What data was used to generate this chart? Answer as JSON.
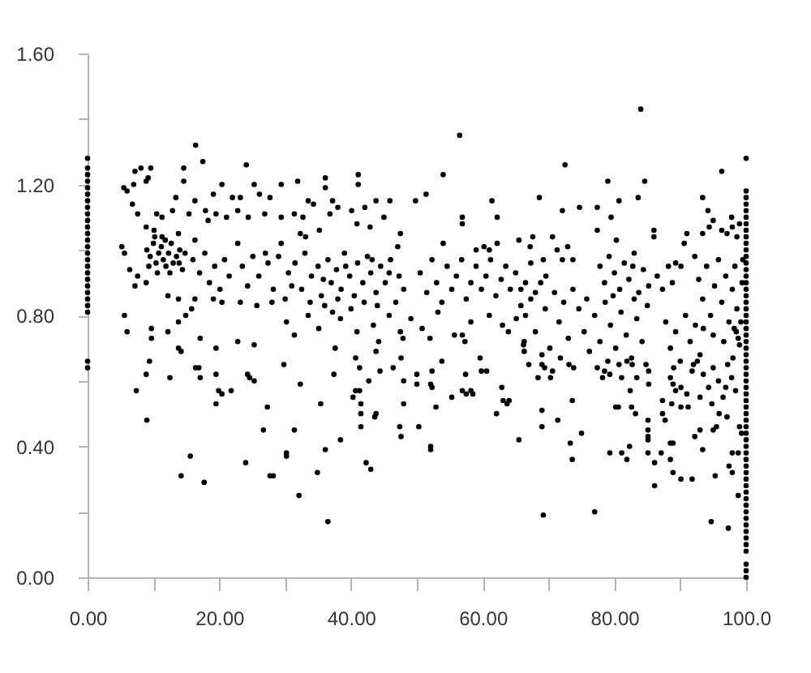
{
  "chart_data": {
    "type": "scatter",
    "color": "#000000",
    "marker": "circle",
    "xlim": [
      0,
      100
    ],
    "ylim": [
      0,
      1.6
    ],
    "xticks": [
      {
        "value": 0,
        "label": "0.00"
      },
      {
        "value": 10,
        "label": null
      },
      {
        "value": 20,
        "label": "20.00"
      },
      {
        "value": 30,
        "label": null
      },
      {
        "value": 40,
        "label": "40.00"
      },
      {
        "value": 50,
        "label": null
      },
      {
        "value": 60,
        "label": "60.00"
      },
      {
        "value": 70,
        "label": null
      },
      {
        "value": 80,
        "label": "80.00"
      },
      {
        "value": 90,
        "label": null
      },
      {
        "value": 100,
        "label": "100.0"
      }
    ],
    "yticks": [
      {
        "value": 0,
        "label": "0.00"
      },
      {
        "value": 0.2,
        "label": null
      },
      {
        "value": 0.4,
        "label": "0.40"
      },
      {
        "value": 0.6,
        "label": null
      },
      {
        "value": 0.8,
        "label": "0.80"
      },
      {
        "value": 1,
        "label": null
      },
      {
        "value": 1.2,
        "label": "1.20"
      },
      {
        "value": 1.4,
        "label": null
      },
      {
        "value": 1.6,
        "label": "1.60"
      }
    ],
    "x": [
      0,
      0,
      0,
      0,
      0,
      0,
      0,
      0,
      0,
      0,
      0,
      0,
      0,
      0,
      0,
      0,
      0,
      0,
      0,
      0,
      0,
      0,
      0,
      0,
      0,
      0,
      100,
      100,
      100,
      100,
      100,
      100,
      100,
      100,
      100,
      100,
      100,
      100,
      100,
      100,
      100,
      100,
      100,
      100,
      100,
      100,
      100,
      100,
      100,
      100,
      100,
      100,
      100,
      100,
      100,
      100,
      100,
      100,
      100,
      100,
      100,
      100,
      100,
      100,
      100,
      100,
      100,
      100,
      100,
      100,
      100,
      100,
      100,
      100,
      100,
      100,
      100,
      100,
      100,
      100,
      100,
      100,
      100,
      100,
      100,
      100,
      16.4,
      17.5,
      24.1,
      7.2,
      8.1,
      9.6,
      9.2,
      14.6,
      14.6,
      5.5,
      6.0,
      7.0,
      8.9,
      20.4,
      25.3,
      29.4,
      13.4,
      16.3,
      19.1,
      22.0,
      23.2,
      26.1,
      27.7,
      6.8,
      7.6,
      10.5,
      11.3,
      12.9,
      15.4,
      17.9,
      18.3,
      19.5,
      21.1,
      22.8,
      24.4,
      26.9,
      29.4,
      8.9,
      10.1,
      11.3,
      13.8,
      16.3,
      9.0,
      9.5,
      10.0,
      10.4,
      10.8,
      11.2,
      11.5,
      11.9,
      12.3,
      12.7,
      13.0,
      13.5,
      14.0,
      14.4,
      9.3,
      10.6,
      11.8,
      12.5,
      13.9,
      14.8,
      10.2,
      5.2,
      5.6,
      6.4,
      7.6,
      8.9,
      7.2,
      16.0,
      17.0,
      17.8,
      18.5,
      19.3,
      20.1,
      20.8,
      21.5,
      22.8,
      23.5,
      24.3,
      25.1,
      26.0,
      27.0,
      27.4,
      28.2,
      29.4,
      12.2,
      13.8,
      16.3,
      19.1,
      20.4,
      23.2,
      25.7,
      28.0,
      5.6,
      6.0,
      9.7,
      9.7,
      13.8,
      14.9,
      15.8,
      12.2,
      17.1,
      19.5,
      22.8,
      25.3,
      13.8,
      14.2,
      9.4,
      7.4,
      8.9,
      9.0,
      12.5,
      16.4,
      16.9,
      17.1,
      19.5,
      19.5,
      19.9,
      20.4,
      21.8,
      24.3,
      24.6,
      25.3,
      29.8,
      27.3,
      26.7,
      15.6,
      14.2,
      17.7,
      24.0,
      27.7,
      28.2,
      56.5,
      41.1,
      41.1,
      36.1,
      36.1,
      31.9,
      54.0,
      49.8,
      51.4,
      61.4,
      62.2,
      56.9,
      56.9,
      33.5,
      34.3,
      37.2,
      43.8,
      45.9,
      45.0,
      31.4,
      32.7,
      36.8,
      38.0,
      40.1,
      42.1,
      40.9,
      42.9,
      32.3,
      35.2,
      33.1,
      47.5,
      47.1,
      54.0,
      67.2,
      65.5,
      59.0,
      60.2,
      61.0,
      62.2,
      29.0,
      30.5,
      31.5,
      32.5,
      33.0,
      34.0,
      35.0,
      35.5,
      36.5,
      37.0,
      37.8,
      38.5,
      39.0,
      39.8,
      40.5,
      41.0,
      41.8,
      42.5,
      43.0,
      43.8,
      44.5,
      45.2,
      46.0,
      46.8,
      47.3,
      48.0,
      30.0,
      33.8,
      36.0,
      38.0,
      40.0,
      42.0,
      44.0,
      31.0,
      35.8,
      39.2,
      43.2,
      45.8,
      50.5,
      51.5,
      52.3,
      53.0,
      53.8,
      54.6,
      55.3,
      56.0,
      56.8,
      57.5,
      58.2,
      59.0,
      59.8,
      60.5,
      61.2,
      62.0,
      62.8,
      63.5,
      64.2,
      65.0,
      65.8,
      66.5,
      67.3,
      68.0,
      30.2,
      31.4,
      33.5,
      35.1,
      37.2,
      38.4,
      40.9,
      43.4,
      45.8,
      47.9,
      49.1,
      50.8,
      53.2,
      55.7,
      58.2,
      61.0,
      63.0,
      65.1,
      66.3,
      37.6,
      43.8,
      44.2,
      47.5,
      52.0,
      56.9,
      57.3,
      63.9,
      66.3,
      32.3,
      37.4,
      35.4,
      31.4,
      30.2,
      30.2,
      36.1,
      34.9,
      38.4,
      32.1,
      36.5,
      40.7,
      41.3,
      41.3,
      40.7,
      40.3,
      42.7,
      41.5,
      41.5,
      41.5,
      43.8,
      43.6,
      42.3,
      43.0,
      44.4,
      46.4,
      47.6,
      48.0,
      50.0,
      50.0,
      52.1,
      52.3,
      52.3,
      48.0,
      47.4,
      50.3,
      47.6,
      52.1,
      52.1,
      52.9,
      53.8,
      55.3,
      57.4,
      56.9,
      57.5,
      58.2,
      58.5,
      59.6,
      59.8,
      60.6,
      62.9,
      63.1,
      63.7,
      64.0,
      62.1,
      65.5,
      67.0,
      69.0,
      69.4,
      68.4,
      70.3,
      70.6,
      73.1,
      73.8,
      69.0,
      69.0,
      71.4,
      73.6,
      73.3,
      73.6,
      75.0,
      69.2,
      77.0,
      77.4,
      78.5,
      79.3,
      78.2,
      80.7,
      81.9,
      82.7,
      81.1,
      83.4,
      85.2,
      85.2,
      84.8,
      82.4,
      80.2,
      80.6,
      82.6,
      83.2,
      79.3,
      81.1,
      81.9,
      82.3,
      85.1,
      85.1,
      85.1,
      85.1,
      85.1,
      86.1,
      86.1,
      87.1,
      87.3,
      87.3,
      87.7,
      88.5,
      88.9,
      89.3,
      90.1,
      91.0,
      88.7,
      90.1,
      91.2,
      88.5,
      88.9,
      88.5,
      88.9,
      90.1,
      91.8,
      92.2,
      93.0,
      93.4,
      94.7,
      95.0,
      95.5,
      95.3,
      95.9,
      97.1,
      97.4,
      97.9,
      97.9,
      98.8,
      98.8,
      97.3,
      99.0,
      99.3,
      92.6,
      93.5,
      94.3,
      95.0,
      95.8,
      96.5,
      97.2,
      97.8,
      98.4,
      93.0,
      94.8,
      96.9,
      98.0,
      91.8,
      72.5,
      96.3,
      79.0,
      84.6,
      68.6,
      80.7,
      83.6,
      93.4,
      72.1,
      74.7,
      77.4,
      79.5,
      94.2,
      95.0,
      97.8,
      99.0,
      77.4,
      86.0,
      86.0,
      91.0,
      90.6,
      93.4,
      94.4,
      96.3,
      97.1,
      97.9,
      98.6,
      67.6,
      70.6,
      80.3,
      71.3,
      72.9,
      72.1,
      69.2,
      73.7,
      69.6,
      77.8,
      78.5,
      79.2,
      80.0,
      80.8,
      81.5,
      82.2,
      83.0,
      83.7,
      84.4,
      85.2,
      79.8,
      82.8,
      86.5,
      87.3,
      88.2,
      89.3,
      90.1,
      88.8,
      92.2,
      92.8,
      93.4,
      94.0,
      94.6,
      95.2,
      95.8,
      96.3,
      96.9,
      97.4,
      97.9,
      98.3,
      98.6,
      98.8,
      98.5,
      99.0,
      98.2,
      93.5,
      95.0,
      96.6,
      99.2,
      99.4,
      99.5,
      65.8,
      66.5,
      67.3,
      68.0,
      68.8,
      69.5,
      70.2,
      70.9,
      71.6,
      72.3,
      73.0,
      73.7,
      66.2,
      69.0,
      71.8,
      74.6,
      75.4,
      76.2,
      77.0,
      77.8,
      78.6,
      79.4,
      80.2,
      81.0,
      81.8,
      82.6,
      83.4,
      84.2,
      85.0,
      75.8,
      79.0,
      83.0,
      87.8,
      88.5,
      89.3,
      90.0,
      90.8,
      91.5,
      92.3,
      93.0,
      89.0,
      92.0,
      84.0
    ],
    "values": [
      0.64,
      0.66,
      0.81,
      0.83,
      0.85,
      0.87,
      0.89,
      0.91,
      0.93,
      0.95,
      0.97,
      0.99,
      1.01,
      1.03,
      1.05,
      1.07,
      1.09,
      1.11,
      1.13,
      1.15,
      1.17,
      1.19,
      1.21,
      1.23,
      1.25,
      1.28,
      0,
      0.02,
      0.04,
      0.08,
      0.1,
      0.12,
      0.14,
      0.16,
      0.18,
      0.2,
      0.22,
      0.24,
      0.26,
      0.28,
      0.3,
      0.32,
      0.34,
      0.36,
      0.38,
      0.4,
      0.42,
      0.44,
      0.46,
      0.48,
      0.5,
      0.52,
      0.54,
      0.56,
      0.58,
      0.6,
      0.62,
      0.64,
      0.66,
      0.68,
      0.7,
      0.72,
      0.74,
      0.76,
      0.78,
      0.8,
      0.82,
      0.84,
      0.86,
      0.88,
      0.9,
      0.92,
      0.94,
      0.96,
      0.98,
      1,
      1.02,
      1.04,
      1.06,
      1.08,
      1.1,
      1.12,
      1.14,
      1.16,
      1.18,
      1.28,
      1.32,
      1.27,
      1.26,
      1.24,
      1.25,
      1.25,
      1.22,
      1.25,
      1.21,
      1.19,
      1.18,
      1.2,
      1.21,
      1.2,
      1.2,
      1.2,
      1.16,
      1.15,
      1.17,
      1.16,
      1.16,
      1.17,
      1.16,
      1.14,
      1.11,
      1.11,
      1.1,
      1.12,
      1.11,
      1.12,
      1.09,
      1.11,
      1.1,
      1.12,
      1.1,
      1.11,
      1.1,
      1.07,
      1.06,
      1.04,
      1.05,
      1.03,
      1.0,
      0.98,
      1.02,
      0.96,
      0.99,
      1.01,
      0.97,
      0.95,
      0.99,
      1.02,
      0.96,
      0.98,
      1.0,
      0.94,
      0.95,
      0.93,
      1.03,
      0.93,
      0.96,
      0.99,
      1.04,
      1.01,
      0.99,
      0.94,
      0.92,
      0.9,
      0.89,
      0.97,
      0.93,
      0.99,
      0.9,
      0.95,
      0.88,
      0.97,
      0.92,
      1.02,
      0.95,
      0.89,
      0.98,
      0.92,
      0.99,
      0.96,
      0.88,
      1.02,
      0.86,
      0.85,
      0.85,
      0.85,
      0.84,
      0.84,
      0.83,
      0.84,
      0.8,
      0.75,
      0.76,
      0.73,
      0.78,
      0.8,
      0.82,
      0.75,
      0.73,
      0.7,
      0.72,
      0.71,
      0.7,
      0.69,
      0.66,
      0.57,
      0.62,
      0.48,
      0.61,
      0.64,
      0.64,
      0.61,
      0.62,
      0.53,
      0.57,
      0.56,
      0.57,
      0.62,
      0.61,
      0.6,
      0.65,
      0.52,
      0.45,
      0.37,
      0.31,
      0.29,
      0.35,
      0.31,
      0.31,
      1.35,
      1.23,
      1.2,
      1.22,
      1.19,
      1.21,
      1.23,
      1.15,
      1.17,
      1.15,
      1.1,
      1.1,
      1.08,
      1.15,
      1.14,
      1.15,
      1.15,
      1.15,
      1.1,
      1.11,
      1.1,
      1.11,
      1.13,
      1.12,
      1.13,
      1.08,
      1.07,
      1.05,
      1.06,
      1.04,
      1.05,
      1.01,
      1.02,
      1.01,
      1.03,
      1.0,
      1.01,
      1.0,
      1.02,
      0.98,
      0.93,
      0.96,
      0.88,
      0.99,
      0.92,
      0.95,
      0.86,
      0.97,
      0.9,
      0.94,
      0.88,
      0.99,
      0.92,
      0.86,
      0.96,
      0.9,
      0.98,
      0.93,
      0.87,
      0.95,
      0.9,
      0.97,
      0.84,
      0.92,
      0.88,
      0.85,
      0.84,
      0.83,
      0.85,
      0.82,
      0.84,
      0.83,
      0.89,
      0.91,
      0.95,
      0.97,
      0.93,
      0.93,
      0.87,
      0.97,
      0.9,
      0.84,
      0.95,
      0.88,
      0.92,
      0.97,
      0.85,
      0.9,
      0.95,
      0.88,
      0.92,
      0.97,
      0.86,
      0.91,
      0.95,
      0.88,
      0.93,
      0.83,
      0.9,
      0.96,
      0.87,
      0.78,
      0.74,
      0.8,
      0.76,
      0.81,
      0.79,
      0.75,
      0.77,
      0.8,
      0.73,
      0.79,
      0.76,
      0.81,
      0.74,
      0.78,
      0.8,
      0.77,
      0.79,
      0.72,
      0.7,
      0.69,
      0.72,
      0.75,
      0.73,
      0.74,
      0.72,
      0.75,
      0.69,
      0.59,
      0.62,
      0.53,
      0.45,
      0.38,
      0.37,
      0.39,
      0.32,
      0.42,
      0.25,
      0.17,
      0.67,
      0.64,
      0.57,
      0.57,
      0.55,
      0.6,
      0.53,
      0.5,
      0.46,
      0.5,
      0.49,
      0.35,
      0.33,
      0.63,
      0.64,
      0.67,
      0.6,
      0.59,
      0.62,
      0.59,
      0.58,
      0.63,
      0.53,
      0.46,
      0.46,
      0.43,
      0.4,
      0.39,
      0.52,
      0.66,
      0.55,
      0.62,
      0.57,
      0.56,
      0.57,
      0.56,
      0.67,
      0.63,
      0.63,
      0.58,
      0.54,
      0.53,
      0.54,
      0.5,
      0.42,
      0.65,
      0.65,
      0.64,
      0.61,
      0.61,
      0.63,
      0.65,
      0.64,
      0.51,
      0.46,
      0.48,
      0.54,
      0.41,
      0.36,
      0.44,
      0.19,
      0.2,
      0.64,
      0.63,
      0.62,
      0.61,
      0.65,
      0.66,
      0.65,
      0.61,
      0.61,
      0.63,
      0.59,
      0.65,
      0.57,
      0.52,
      0.52,
      0.52,
      0.5,
      0.38,
      0.38,
      0.36,
      0.4,
      0.48,
      0.45,
      0.43,
      0.42,
      0.38,
      0.35,
      0.28,
      0.38,
      0.54,
      0.5,
      0.48,
      0.61,
      0.59,
      0.57,
      0.58,
      0.56,
      0.53,
      0.52,
      0.52,
      0.41,
      0.41,
      0.36,
      0.32,
      0.3,
      0.3,
      0.43,
      0.45,
      0.39,
      0.17,
      0.45,
      0.46,
      0.31,
      0.5,
      0.49,
      0.34,
      0.32,
      0.38,
      0.38,
      0.25,
      0.15,
      0.46,
      0.44,
      0.66,
      0.62,
      0.58,
      0.64,
      0.6,
      0.55,
      0.65,
      0.61,
      0.57,
      0.55,
      0.53,
      0.58,
      0.67,
      0.63,
      1.26,
      1.24,
      1.21,
      1.21,
      1.16,
      1.15,
      1.16,
      1.16,
      1.12,
      1.13,
      1.13,
      1.1,
      1.12,
      1.09,
      1.1,
      1.08,
      1.06,
      1.06,
      1.04,
      1.05,
      1.02,
      1.05,
      1.07,
      1.06,
      1.05,
      1.07,
      1.04,
      1.04,
      1.04,
      1.03,
      1.0,
      1.01,
      0.97,
      0.97,
      0.97,
      0.92,
      0.95,
      0.9,
      0.98,
      0.93,
      0.88,
      0.96,
      0.91,
      0.99,
      0.87,
      0.94,
      0.89,
      0.86,
      0.95,
      0.92,
      0.88,
      0.95,
      0.96,
      0.95,
      0.9,
      0.98,
      0.91,
      0.85,
      0.95,
      0.8,
      0.89,
      0.97,
      0.84,
      0.92,
      0.78,
      0.88,
      0.95,
      0.82,
      0.73,
      0.75,
      0.71,
      0.76,
      0.76,
      0.74,
      0.72,
      0.78,
      0.9,
      0.97,
      0.88,
      0.8,
      0.85,
      0.75,
      0.9,
      0.82,
      0.7,
      0.87,
      0.78,
      0.84,
      0.73,
      0.88,
      0.71,
      0.68,
      0.67,
      0.82,
      0.75,
      0.69,
      0.8,
      0.72,
      0.84,
      0.77,
      0.7,
      0.81,
      0.74,
      0.67,
      0.79,
      0.72,
      0.83,
      0.85,
      0.66,
      0.85,
      0.78,
      0.7,
      0.75,
      0.66,
      0.8,
      0.72,
      0.77,
      0.68,
      0.64,
      0.65,
      1.43
    ]
  }
}
